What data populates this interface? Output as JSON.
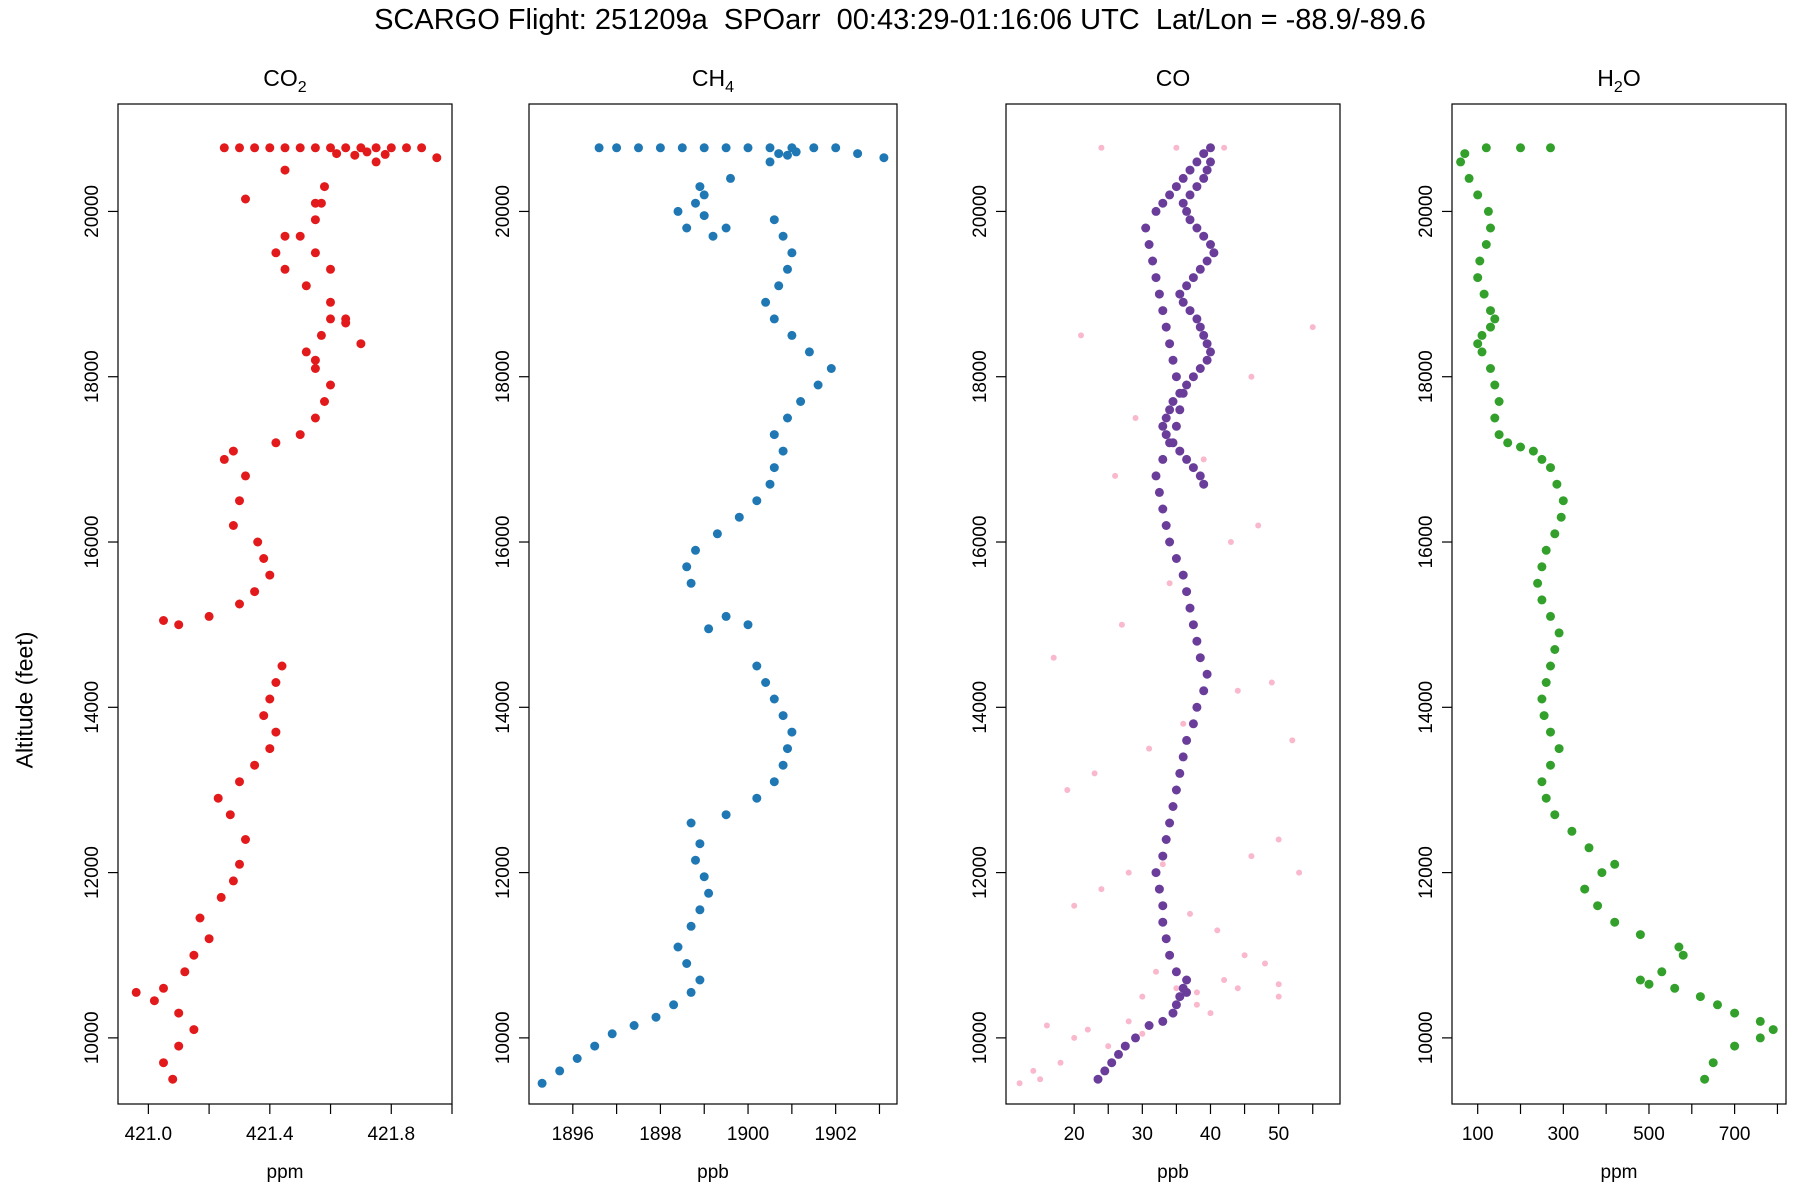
{
  "title": "SCARGO Flight: 251209a  SPOarr  00:43:29-01:16:06 UTC  Lat/Lon = -88.9/-89.6",
  "ylabel": "Altitude (feet)",
  "chart_data": [
    {
      "type": "scatter",
      "title": "CO2",
      "title_base": "CO",
      "title_sub": "2",
      "xlabel": "ppm",
      "xlim": [
        420.9,
        422.0
      ],
      "ylim": [
        9200,
        21300
      ],
      "xticks": [
        421.0,
        421.2,
        421.4,
        421.6,
        421.8,
        422.0
      ],
      "xtick_labels": [
        "421.0",
        "",
        "421.4",
        "",
        "421.8",
        ""
      ],
      "yticks": [
        10000,
        12000,
        14000,
        16000,
        18000,
        20000
      ],
      "ytick_labels": [
        "10000",
        "12000",
        "14000",
        "16000",
        "18000",
        "20000"
      ],
      "color": "#e31a1c",
      "series": [
        {
          "name": "CO2",
          "color": "#e31a1c",
          "x": [
            421.08,
            421.05,
            421.1,
            421.15,
            421.1,
            421.02,
            420.96,
            421.05,
            421.12,
            421.15,
            421.2,
            421.17,
            421.24,
            421.28,
            421.3,
            421.32,
            421.27,
            421.23,
            421.3,
            421.35,
            421.4,
            421.42,
            421.38,
            421.4,
            421.42,
            421.44,
            421.1,
            421.05,
            421.2,
            421.3,
            421.35,
            421.4,
            421.38,
            421.36,
            421.28,
            421.3,
            421.32,
            421.25,
            421.28,
            421.42,
            421.5,
            421.55,
            421.58,
            421.6,
            421.55,
            421.52,
            421.57,
            421.6,
            421.65,
            421.6,
            421.52,
            421.45,
            421.42,
            421.5,
            421.55,
            421.57,
            421.58,
            421.55,
            421.32,
            421.45,
            421.55,
            421.6,
            421.65,
            421.7,
            421.55,
            421.45,
            421.75,
            421.95
          ],
          "y": [
            9500,
            9700,
            9900,
            10100,
            10300,
            10450,
            10550,
            10600,
            10800,
            11000,
            11200,
            11450,
            11700,
            11900,
            12100,
            12400,
            12700,
            12900,
            13100,
            13300,
            13500,
            13700,
            13900,
            14100,
            14300,
            14500,
            15000,
            15050,
            15100,
            15250,
            15400,
            15600,
            15800,
            16000,
            16200,
            16500,
            16800,
            17000,
            17100,
            17200,
            17300,
            17500,
            17700,
            17900,
            18100,
            18300,
            18500,
            18700,
            18650,
            18900,
            19100,
            19300,
            19500,
            19700,
            19900,
            20100,
            20300,
            20100,
            20150,
            19700,
            19500,
            19300,
            18700,
            18400,
            18200,
            20500,
            20600,
            20650
          ]
        },
        {
          "name": "CO2-top",
          "color": "#e31a1c",
          "x": [
            421.25,
            421.3,
            421.35,
            421.4,
            421.45,
            421.5,
            421.55,
            421.6,
            421.65,
            421.7,
            421.75,
            421.8,
            421.85,
            421.9,
            421.62,
            421.68,
            421.72,
            421.78
          ],
          "y": [
            20770,
            20770,
            20770,
            20770,
            20770,
            20770,
            20770,
            20770,
            20770,
            20770,
            20770,
            20770,
            20770,
            20770,
            20700,
            20680,
            20720,
            20690
          ]
        }
      ]
    },
    {
      "type": "scatter",
      "title": "CH4",
      "title_base": "CH",
      "title_sub": "4",
      "xlabel": "ppb",
      "xlim": [
        1895.0,
        1903.4
      ],
      "ylim": [
        9200,
        21300
      ],
      "xticks": [
        1896,
        1897,
        1898,
        1899,
        1900,
        1901,
        1902,
        1903
      ],
      "xtick_labels": [
        "1896",
        "",
        "1898",
        "",
        "1900",
        "",
        "1902",
        ""
      ],
      "yticks": [
        10000,
        12000,
        14000,
        16000,
        18000,
        20000
      ],
      "ytick_labels": [
        "10000",
        "12000",
        "14000",
        "16000",
        "18000",
        "20000"
      ],
      "color": "#1f78b4",
      "series": [
        {
          "name": "CH4",
          "color": "#1f78b4",
          "x": [
            1895.3,
            1895.7,
            1896.1,
            1896.5,
            1896.9,
            1897.4,
            1897.9,
            1898.3,
            1898.7,
            1898.9,
            1898.6,
            1898.4,
            1898.7,
            1898.9,
            1899.1,
            1899.0,
            1898.8,
            1898.9,
            1898.7,
            1899.5,
            1900.2,
            1900.6,
            1900.8,
            1900.9,
            1901.0,
            1900.8,
            1900.6,
            1900.4,
            1900.2,
            1900.0,
            1899.5,
            1899.1,
            1898.7,
            1898.6,
            1898.8,
            1899.3,
            1899.8,
            1900.2,
            1900.5,
            1900.6,
            1900.8,
            1900.6,
            1900.9,
            1901.2,
            1901.6,
            1901.9,
            1901.4,
            1901.0,
            1900.6,
            1900.4,
            1900.7,
            1900.9,
            1901.0,
            1900.8,
            1900.6,
            1899.5,
            1899.0,
            1898.8,
            1898.4,
            1898.6,
            1899.2,
            1899.6,
            1899.0,
            1898.9
          ],
          "y": [
            9450,
            9600,
            9750,
            9900,
            10050,
            10150,
            10250,
            10400,
            10550,
            10700,
            10900,
            11100,
            11350,
            11550,
            11750,
            11950,
            12150,
            12350,
            12600,
            12700,
            12900,
            13100,
            13300,
            13500,
            13700,
            13900,
            14100,
            14300,
            14500,
            15000,
            15100,
            14950,
            15500,
            15700,
            15900,
            16100,
            16300,
            16500,
            16700,
            16900,
            17100,
            17300,
            17500,
            17700,
            17900,
            18100,
            18300,
            18500,
            18700,
            18900,
            19100,
            19300,
            19500,
            19700,
            19900,
            19800,
            19950,
            20100,
            20000,
            19800,
            19700,
            20400,
            20200,
            20300
          ]
        },
        {
          "name": "CH4-top",
          "color": "#1f78b4",
          "x": [
            1896.6,
            1897.0,
            1897.5,
            1898.0,
            1898.5,
            1899.0,
            1899.5,
            1900.0,
            1900.5,
            1901.0,
            1901.5,
            1902.0,
            1902.5,
            1903.1,
            1900.7,
            1900.9,
            1901.1,
            1900.5
          ],
          "y": [
            20770,
            20770,
            20770,
            20770,
            20770,
            20770,
            20770,
            20770,
            20770,
            20770,
            20770,
            20770,
            20700,
            20650,
            20700,
            20680,
            20720,
            20600
          ]
        }
      ]
    },
    {
      "type": "scatter",
      "title": "CO",
      "title_base": "CO",
      "title_sub": "",
      "xlabel": "ppb",
      "xlim": [
        10.0,
        59.0
      ],
      "ylim": [
        9200,
        21300
      ],
      "xticks": [
        20,
        25,
        30,
        35,
        40,
        45,
        50,
        55
      ],
      "xtick_labels": [
        "20",
        "",
        "30",
        "",
        "40",
        "",
        "50",
        ""
      ],
      "yticks": [
        10000,
        12000,
        14000,
        16000,
        18000,
        20000
      ],
      "ytick_labels": [
        "10000",
        "12000",
        "14000",
        "16000",
        "18000",
        "20000"
      ],
      "color": "#6a3d9a",
      "series": [
        {
          "name": "CO-raw",
          "color": "#f9b8cc",
          "x": [
            12,
            15,
            18,
            20,
            22,
            25,
            28,
            30,
            32,
            35,
            38,
            40,
            42,
            45,
            48,
            50,
            20,
            24,
            28,
            33,
            37,
            41,
            46,
            50,
            53,
            19,
            23,
            31,
            36,
            44,
            49,
            52,
            17,
            27,
            34,
            43,
            47,
            26,
            39,
            29,
            46,
            21,
            55,
            14,
            16,
            30,
            38,
            44,
            50,
            24,
            35,
            42
          ],
          "y": [
            9450,
            9500,
            9700,
            10000,
            10100,
            9900,
            10200,
            10500,
            10800,
            10600,
            10400,
            10300,
            10700,
            11000,
            10900,
            10500,
            11600,
            11800,
            12000,
            12100,
            11500,
            11300,
            12200,
            12400,
            12000,
            13000,
            13200,
            13500,
            13800,
            14200,
            14300,
            13600,
            14600,
            15000,
            15500,
            16000,
            16200,
            16800,
            17000,
            17500,
            18000,
            18500,
            18600,
            9600,
            10150,
            10050,
            10550,
            10600,
            10650,
            20770,
            20770,
            20770
          ]
        },
        {
          "name": "CO",
          "color": "#6a3d9a",
          "x": [
            23.5,
            24.5,
            25.5,
            26.5,
            27.5,
            29,
            31,
            33,
            34.5,
            35,
            35.5,
            36,
            36.5,
            36.5,
            35,
            34,
            33.5,
            33,
            33,
            32.5,
            32,
            33,
            33.5,
            34,
            34.5,
            35,
            35.5,
            36,
            36.5,
            37.5,
            38,
            39,
            39.5,
            38.5,
            38,
            37.5,
            37,
            36.5,
            36,
            35,
            34,
            33.5,
            33,
            32.5,
            32,
            33,
            34,
            35,
            35.5,
            36,
            35,
            34.5,
            34,
            33.5,
            33,
            32.5,
            32,
            31.5,
            31,
            30.5,
            32,
            33,
            34,
            35,
            36,
            37,
            38,
            39,
            40,
            40,
            39.5,
            39,
            38,
            37,
            36,
            36.5,
            37,
            38,
            39,
            40,
            40.5,
            39.5,
            38.5,
            37.5,
            36.5,
            35.5,
            36,
            37,
            38,
            38.5,
            39,
            39.5,
            40,
            39.5,
            38.5,
            37.5,
            36.5,
            35.5,
            34.5,
            34,
            33.5,
            33,
            33.5,
            34.5,
            35.5,
            36.5,
            37.5,
            38.5,
            39
          ],
          "y": [
            9500,
            9600,
            9700,
            9800,
            9900,
            10000,
            10150,
            10200,
            10300,
            10400,
            10500,
            10600,
            10700,
            10550,
            10800,
            11000,
            11200,
            11400,
            11600,
            11800,
            12000,
            12200,
            12400,
            12600,
            12800,
            13000,
            13200,
            13400,
            13600,
            13800,
            14000,
            14200,
            14400,
            14600,
            14800,
            15000,
            15200,
            15400,
            15600,
            15800,
            16000,
            16200,
            16400,
            16600,
            16800,
            17000,
            17200,
            17400,
            17600,
            17800,
            18000,
            18200,
            18400,
            18600,
            18800,
            19000,
            19200,
            19400,
            19600,
            19800,
            20000,
            20100,
            20200,
            20300,
            20400,
            20500,
            20600,
            20700,
            20770,
            20600,
            20500,
            20400,
            20300,
            20200,
            20100,
            20000,
            19900,
            19800,
            19700,
            19600,
            19500,
            19400,
            19300,
            19200,
            19100,
            19000,
            18900,
            18800,
            18700,
            18600,
            18500,
            18400,
            18300,
            18200,
            18100,
            18000,
            17900,
            17800,
            17700,
            17600,
            17500,
            17400,
            17300,
            17200,
            17100,
            17000,
            16900,
            16800,
            16700
          ]
        }
      ]
    },
    {
      "type": "scatter",
      "title": "H2O",
      "title_base": "H",
      "title_sub": "2",
      "title_tail": "O",
      "xlabel": "ppm",
      "xlim": [
        40,
        820
      ],
      "ylim": [
        9200,
        21300
      ],
      "xticks": [
        100,
        200,
        300,
        400,
        500,
        600,
        700,
        800
      ],
      "xtick_labels": [
        "100",
        "",
        "300",
        "",
        "500",
        "",
        "700",
        ""
      ],
      "yticks": [
        10000,
        12000,
        14000,
        16000,
        18000,
        20000
      ],
      "ytick_labels": [
        "10000",
        "12000",
        "14000",
        "16000",
        "18000",
        "20000"
      ],
      "color": "#33a02c",
      "series": [
        {
          "name": "H2O",
          "color": "#33a02c",
          "x": [
            630,
            650,
            700,
            760,
            790,
            760,
            700,
            660,
            620,
            560,
            500,
            480,
            530,
            580,
            570,
            480,
            420,
            380,
            350,
            390,
            420,
            360,
            320,
            280,
            260,
            250,
            270,
            290,
            270,
            255,
            250,
            260,
            270,
            280,
            290,
            270,
            250,
            240,
            250,
            260,
            280,
            295,
            300,
            285,
            270,
            250,
            230,
            200,
            170,
            150,
            140,
            150,
            140,
            130,
            110,
            100,
            110,
            130,
            140,
            130,
            115,
            100,
            105,
            120,
            130,
            125,
            100,
            80,
            60,
            70,
            120,
            200,
            270
          ],
          "y": [
            9500,
            9700,
            9900,
            10000,
            10100,
            10200,
            10300,
            10400,
            10500,
            10600,
            10650,
            10700,
            10800,
            11000,
            11100,
            11250,
            11400,
            11600,
            11800,
            12000,
            12100,
            12300,
            12500,
            12700,
            12900,
            13100,
            13300,
            13500,
            13700,
            13900,
            14100,
            14300,
            14500,
            14700,
            14900,
            15100,
            15300,
            15500,
            15700,
            15900,
            16100,
            16300,
            16500,
            16700,
            16900,
            17000,
            17100,
            17150,
            17200,
            17300,
            17500,
            17700,
            17900,
            18100,
            18300,
            18400,
            18500,
            18600,
            18700,
            18800,
            19000,
            19200,
            19400,
            19600,
            19800,
            20000,
            20200,
            20400,
            20600,
            20700,
            20770,
            20770,
            20770
          ]
        }
      ]
    }
  ]
}
